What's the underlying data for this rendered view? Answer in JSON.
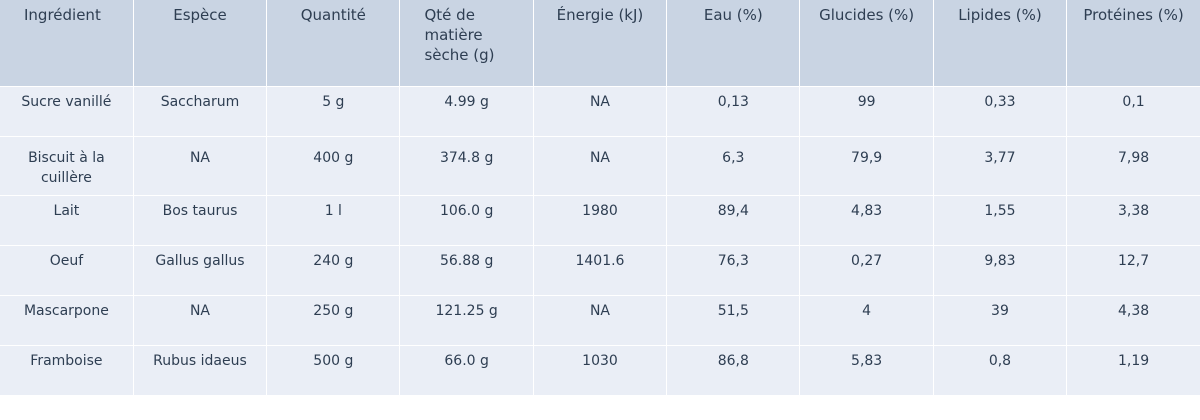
{
  "table": {
    "headers": [
      "Ingrédient",
      "Espèce",
      "Quantité",
      "Qté de matière sèche (g)",
      "Énergie (kJ)",
      "Eau (%)",
      "Glucides (%)",
      "Lipides (%)",
      "Protéines (%)"
    ],
    "rows": [
      [
        "Sucre vanillé",
        "Saccharum",
        "5 g",
        "4.99 g",
        "NA",
        "0,13",
        "99",
        "0,33",
        "0,1"
      ],
      [
        "Biscuit à la cuillère",
        "NA",
        "400 g",
        "374.8 g",
        "NA",
        "6,3",
        "79,9",
        "3,77",
        "7,98"
      ],
      [
        "Lait",
        "Bos taurus",
        "1 l",
        "106.0 g",
        "1980",
        "89,4",
        "4,83",
        "1,55",
        "3,38"
      ],
      [
        "Oeuf",
        "Gallus gallus",
        "240 g",
        "56.88 g",
        "1401.6",
        "76,3",
        "0,27",
        "9,83",
        "12,7"
      ],
      [
        "Mascarpone",
        "NA",
        "250 g",
        "121.25 g",
        "NA",
        "51,5",
        "4",
        "39",
        "4,38"
      ],
      [
        "Framboise",
        "Rubus idaeus",
        "500 g",
        "66.0 g",
        "1030",
        "86,8",
        "5,83",
        "0,8",
        "1,19"
      ]
    ]
  },
  "colors": {
    "header_bg": "#c9d4e3",
    "cell_bg": "#eaeef6",
    "text": "#2e3e52"
  }
}
